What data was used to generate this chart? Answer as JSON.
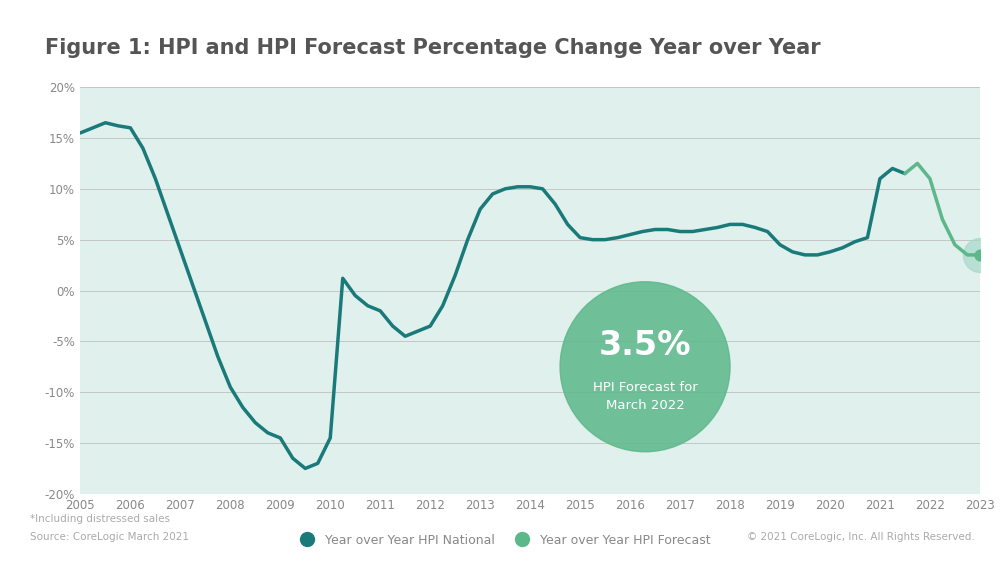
{
  "title": "Figure 1: HPI and HPI Forecast Percentage Change Year over Year",
  "background_color": "#dff0ed",
  "outer_background": "#ffffff",
  "hpi_national_color": "#1a7a7a",
  "hpi_forecast_color": "#5cb88a",
  "hpi_forecast_dot_color": "#a8d8c8",
  "bubble_color": "#5cb88a",
  "bubble_text_pct": "3.5%",
  "bubble_text_label": "HPI Forecast for\nMarch 2022",
  "ylim": [
    -20,
    20
  ],
  "yticks": [
    -20,
    -15,
    -10,
    -5,
    0,
    5,
    10,
    15,
    20
  ],
  "ytick_labels": [
    "-20%",
    "-15%",
    "-10%",
    "-5%",
    "0%",
    "5%",
    "10%",
    "15%",
    "20%"
  ],
  "xlim": [
    2005,
    2023
  ],
  "xticks": [
    2005,
    2006,
    2007,
    2008,
    2009,
    2010,
    2011,
    2012,
    2013,
    2014,
    2015,
    2016,
    2017,
    2018,
    2019,
    2020,
    2021,
    2022,
    2023
  ],
  "footnote1": "*Including distressed sales",
  "footnote2": "Source: CoreLogic March 2021",
  "copyright": "© 2021 CoreLogic, Inc. All Rights Reserved.",
  "legend_national": "Year over Year HPI National",
  "legend_forecast": "Year over Year HPI Forecast",
  "hpi_national_x": [
    2005.0,
    2005.25,
    2005.5,
    2005.75,
    2006.0,
    2006.25,
    2006.5,
    2006.75,
    2007.0,
    2007.25,
    2007.5,
    2007.75,
    2008.0,
    2008.25,
    2008.5,
    2008.75,
    2009.0,
    2009.25,
    2009.5,
    2009.75,
    2010.0,
    2010.25,
    2010.5,
    2010.75,
    2011.0,
    2011.25,
    2011.5,
    2011.75,
    2012.0,
    2012.25,
    2012.5,
    2012.75,
    2013.0,
    2013.25,
    2013.5,
    2013.75,
    2014.0,
    2014.25,
    2014.5,
    2014.75,
    2015.0,
    2015.25,
    2015.5,
    2015.75,
    2016.0,
    2016.25,
    2016.5,
    2016.75,
    2017.0,
    2017.25,
    2017.5,
    2017.75,
    2018.0,
    2018.25,
    2018.5,
    2018.75,
    2019.0,
    2019.25,
    2019.5,
    2019.75,
    2020.0,
    2020.25,
    2020.5,
    2020.75,
    2021.0,
    2021.25,
    2021.5
  ],
  "hpi_national_y": [
    15.5,
    16.0,
    16.5,
    16.2,
    16.0,
    14.0,
    11.0,
    7.5,
    4.0,
    0.5,
    -3.0,
    -6.5,
    -9.5,
    -11.5,
    -13.0,
    -14.0,
    -14.5,
    -16.5,
    -17.5,
    -17.0,
    -14.5,
    1.2,
    -0.5,
    -1.5,
    -2.0,
    -3.5,
    -4.5,
    -4.0,
    -3.5,
    -1.5,
    1.5,
    5.0,
    8.0,
    9.5,
    10.0,
    10.2,
    10.2,
    10.0,
    8.5,
    6.5,
    5.2,
    5.0,
    5.0,
    5.2,
    5.5,
    5.8,
    6.0,
    6.0,
    5.8,
    5.8,
    6.0,
    6.2,
    6.5,
    6.5,
    6.2,
    5.8,
    4.5,
    3.8,
    3.5,
    3.5,
    3.8,
    4.2,
    4.8,
    5.2,
    11.0,
    12.0,
    11.5
  ],
  "hpi_forecast_x": [
    2021.5,
    2021.75,
    2022.0,
    2022.25,
    2022.5,
    2022.75,
    2023.0
  ],
  "hpi_forecast_y": [
    11.5,
    12.5,
    11.0,
    7.0,
    4.5,
    3.5,
    3.5
  ],
  "bubble_x": 2016.3,
  "bubble_y": -7.5,
  "dot_x": 2023.0,
  "dot_y": 3.5,
  "title_fontsize": 15,
  "tick_fontsize": 8.5,
  "footnote_fontsize": 7.5,
  "copyright_fontsize": 7.5
}
